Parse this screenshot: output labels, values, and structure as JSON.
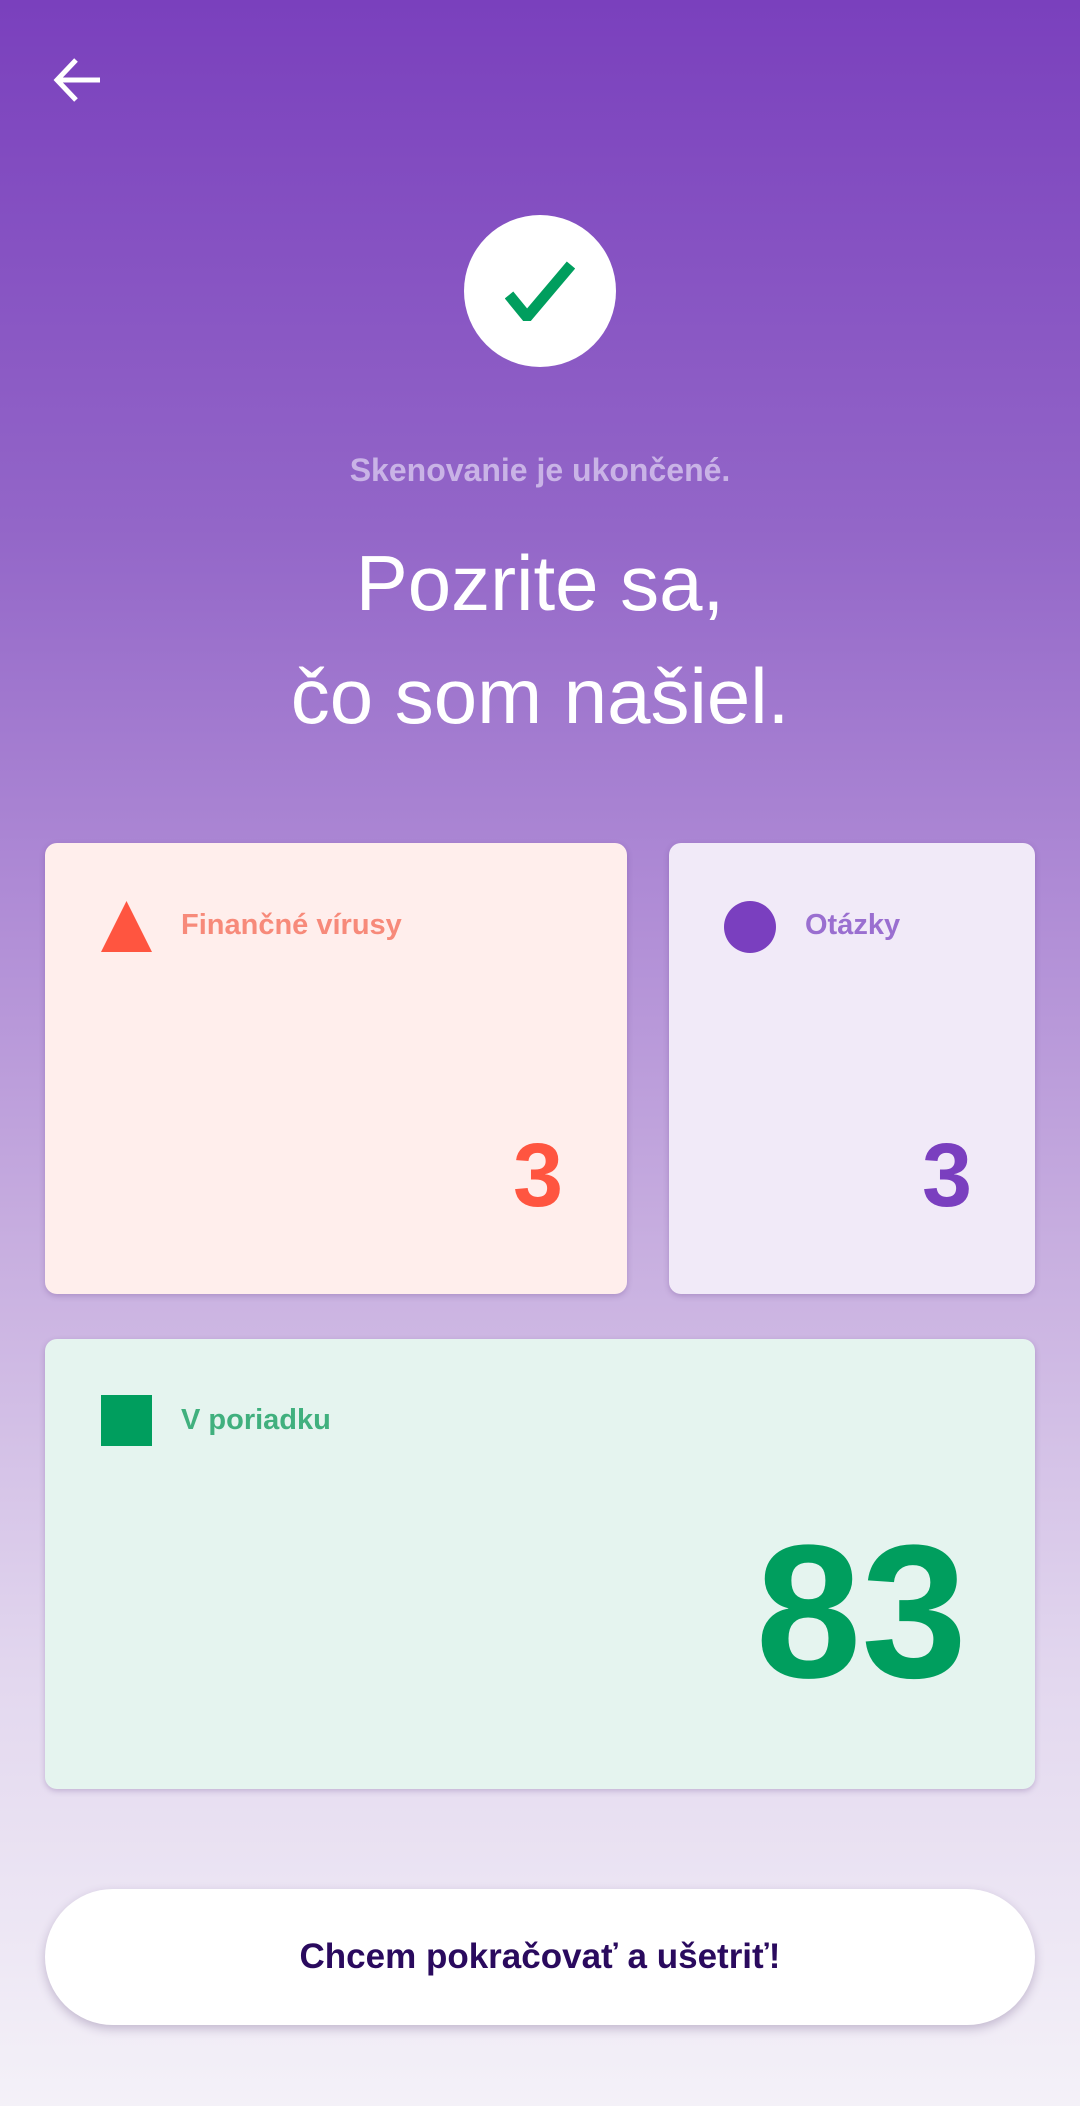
{
  "header": {
    "back_icon": "arrow-left-icon"
  },
  "status": {
    "icon": "check-icon",
    "subtitle": "Skenovanie je ukončené.",
    "title_line1": "Pozrite sa,",
    "title_line2": "čo som našiel."
  },
  "cards": [
    {
      "label": "Finančné vírusy",
      "value": "3",
      "icon": "triangle-icon",
      "bg": "#ffeeec",
      "label_color": "#f78a7a",
      "value_color": "#ff5540",
      "icon_color": "#ff5540"
    },
    {
      "label": "Otázky",
      "value": "3",
      "icon": "circle-icon",
      "bg": "#f1eaf8",
      "label_color": "#9a6fd0",
      "value_color": "#7a3fbf",
      "icon_color": "#7a3fbf"
    },
    {
      "label": "V poriadku",
      "value": "83",
      "icon": "square-icon",
      "bg": "#e5f4ef",
      "label_color": "#40b07e",
      "value_color": "#009e5e",
      "icon_color": "#009e5e"
    }
  ],
  "cta": {
    "label": "Chcem pokračovať a ušetriť!"
  }
}
